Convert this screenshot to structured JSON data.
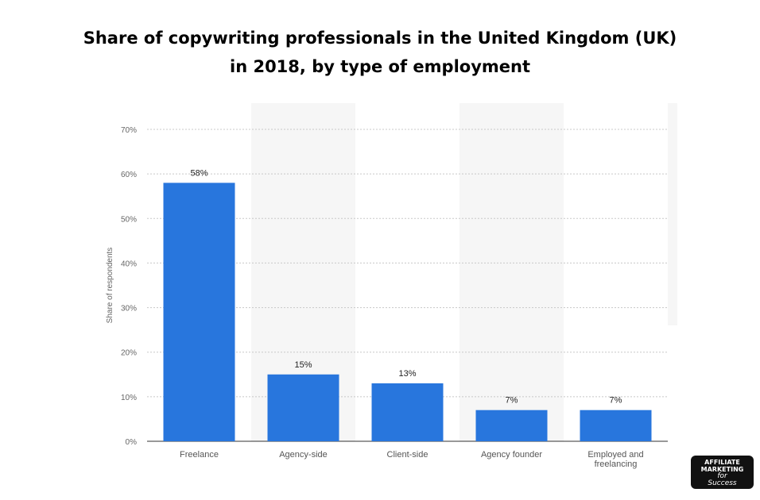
{
  "title": {
    "line1": "Share of copywriting professionals in the United Kingdom (UK)",
    "line2": "in 2018, by type of employment"
  },
  "logo": {
    "line1": "AFFILIATE",
    "line2": "MARKETING",
    "line3": "for",
    "line4": "Success"
  },
  "chart_data": {
    "type": "bar",
    "categories": [
      "Freelance",
      "Agency-side",
      "Client-side",
      "Agency founder",
      "Employed and freelancing"
    ],
    "values": [
      58,
      15,
      13,
      7,
      7
    ],
    "value_labels": [
      "58%",
      "15%",
      "13%",
      "7%",
      "7%"
    ],
    "ylabel": "Share of respondents",
    "ylim": [
      0,
      70
    ],
    "yticks": [
      0,
      10,
      20,
      30,
      40,
      50,
      60,
      70
    ],
    "ytick_labels": [
      "0%",
      "10%",
      "20%",
      "30%",
      "40%",
      "50%",
      "60%",
      "70%"
    ],
    "grid": true,
    "bar_color": "#2876dd",
    "grid_color": "#c8c8c8",
    "band_color": "#f6f6f6"
  }
}
